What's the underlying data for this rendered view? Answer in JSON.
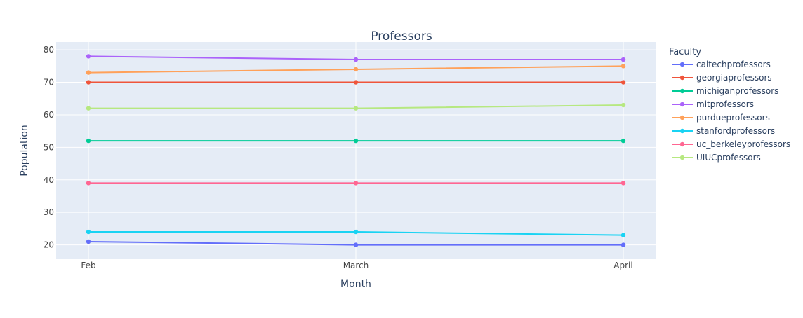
{
  "chart_data": {
    "type": "line",
    "title": "Professors",
    "xlabel": "Month",
    "ylabel": "Population",
    "categories": [
      "Feb",
      "March",
      "April"
    ],
    "ylim": [
      15.6,
      82.4
    ],
    "yticks": [
      20,
      30,
      40,
      50,
      60,
      70,
      80
    ],
    "grid": true,
    "legend_title": "Faculty",
    "legend_position": "right",
    "series": [
      {
        "name": "caltechprofessors",
        "color": "#636efa",
        "values": [
          21,
          20,
          20
        ]
      },
      {
        "name": "georgiaprofessors",
        "color": "#ef553b",
        "values": [
          70,
          70,
          70
        ]
      },
      {
        "name": "michiganprofessors",
        "color": "#00cc96",
        "values": [
          52,
          52,
          52
        ]
      },
      {
        "name": "mitprofessors",
        "color": "#ab63fa",
        "values": [
          78,
          77,
          77
        ]
      },
      {
        "name": "purdueprofessors",
        "color": "#ffa15a",
        "values": [
          73,
          74,
          75
        ]
      },
      {
        "name": "stanfordprofessors",
        "color": "#19d3f3",
        "values": [
          24,
          24,
          23
        ]
      },
      {
        "name": "uc_berkeleyprofessors",
        "color": "#ff6692",
        "values": [
          39,
          39,
          39
        ]
      },
      {
        "name": "UIUCprofessors",
        "color": "#b6e880",
        "values": [
          62,
          62,
          63
        ]
      }
    ]
  }
}
